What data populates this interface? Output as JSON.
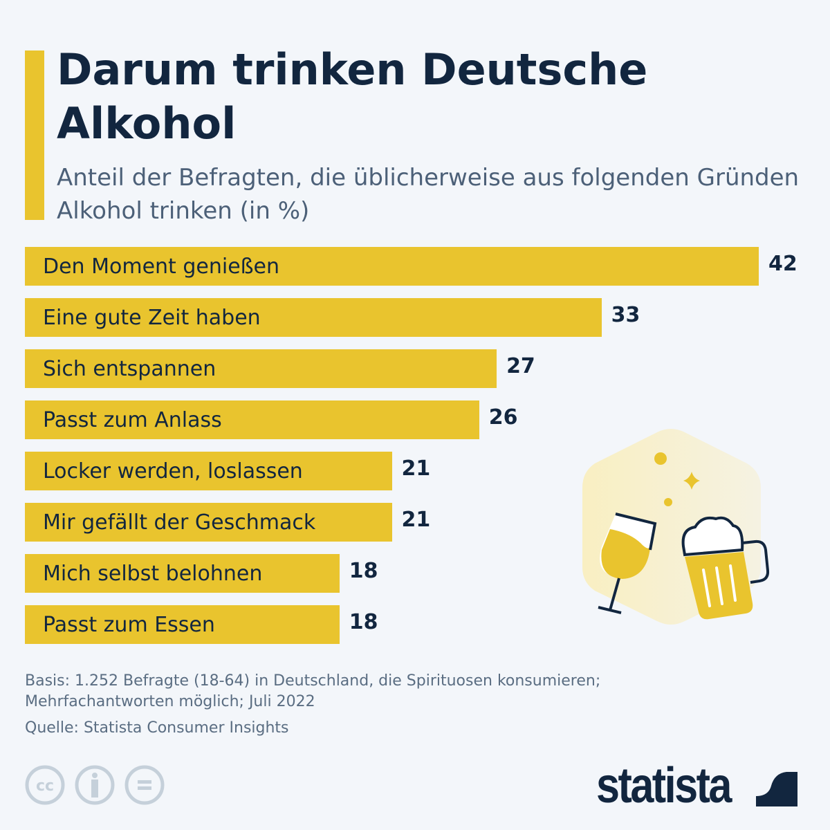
{
  "header": {
    "title": "Darum trinken Deutsche Alkohol",
    "subtitle": "Anteil der Befragten, die üblicherweise aus folgenden Gründen Alkohol trinken (in %)"
  },
  "chart_data": {
    "type": "bar",
    "orientation": "horizontal",
    "categories": [
      "Den Moment genießen",
      "Eine gute Zeit haben",
      "Sich entspannen",
      "Passt zum Anlass",
      "Locker werden, loslassen",
      "Mir gefällt der Geschmack",
      "Mich selbst belohnen",
      "Passt zum Essen"
    ],
    "values": [
      42,
      33,
      27,
      26,
      21,
      21,
      18,
      18
    ],
    "title": "Darum trinken Deutsche Alkohol",
    "xlabel": "",
    "ylabel": "",
    "xlim": [
      0,
      42
    ],
    "grid": false,
    "bar_color": "#e9c42e"
  },
  "footer": {
    "basis": "Basis: 1.252 Befragte (18-64) in Deutschland, die Spirituosen konsumieren; Mehrfachantworten möglich; Juli 2022",
    "source": "Quelle: Statista Consumer Insights",
    "license_icons": [
      "cc-icon",
      "attribution-icon",
      "no-derivatives-icon"
    ],
    "logo": "statista"
  },
  "colors": {
    "accent": "#e9c42e",
    "text": "#12263f",
    "background": "#f3f6fa"
  }
}
